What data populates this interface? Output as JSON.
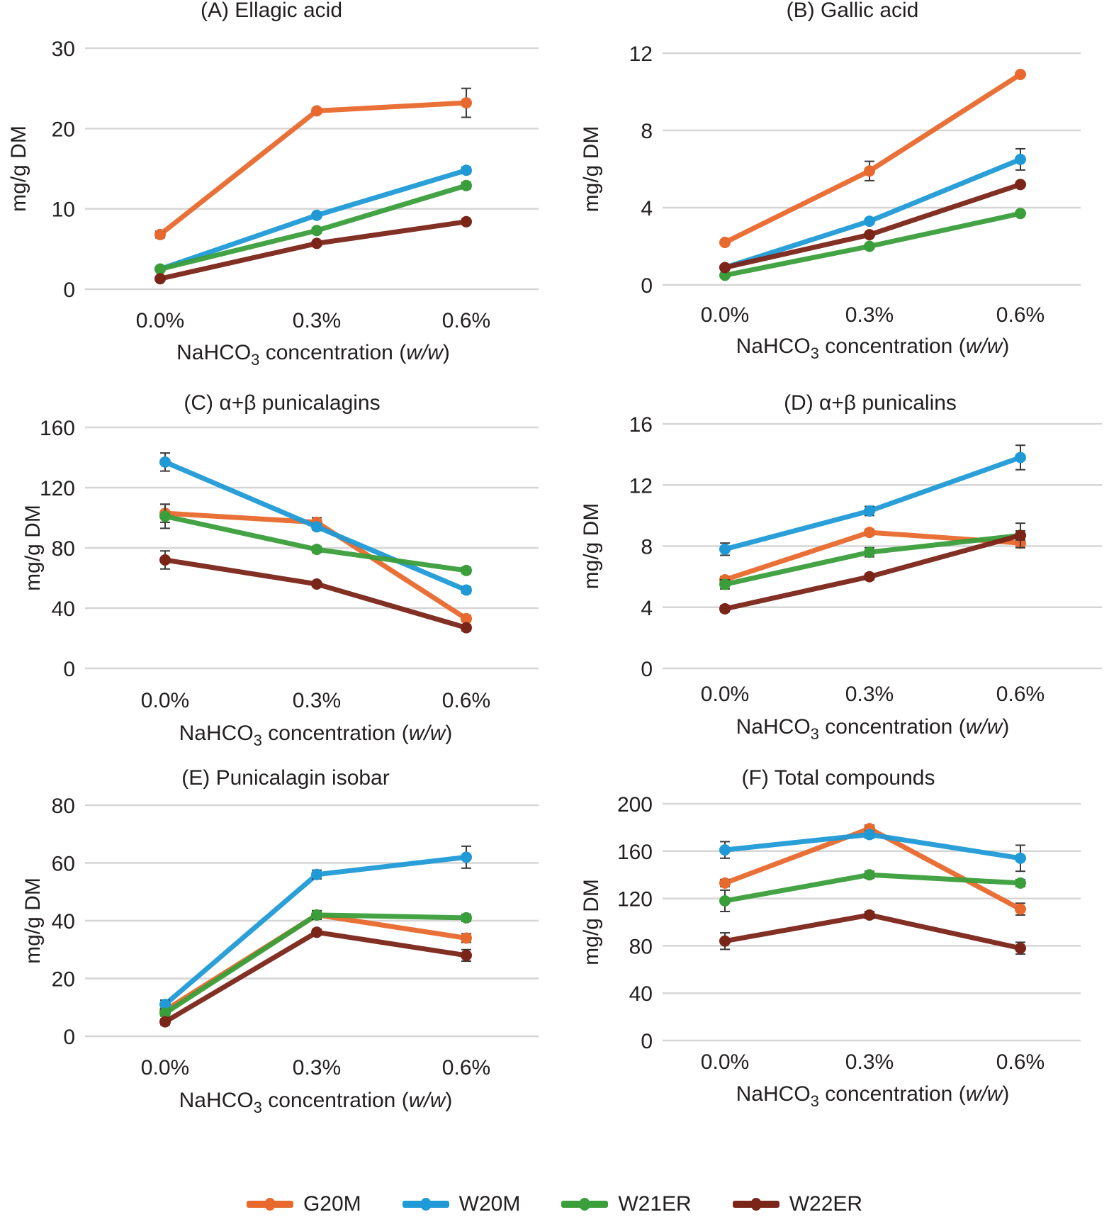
{
  "figure": {
    "legend_entries": [
      "G20M",
      "W20M",
      "W21ER",
      "W22ER"
    ]
  },
  "chart_data": [
    {
      "type": "line",
      "title": "(A) Ellagic acid",
      "xlabel": "NaHCO3 concentration (w/w)",
      "xlabel_parts": {
        "pre": "NaHCO",
        "sub": "3",
        "mid": " concentration (",
        "ital": "w/w",
        "post": ")"
      },
      "ylabel": "mg/g DM",
      "categories": [
        "0.0%",
        "0.3%",
        "0.6%"
      ],
      "ylim": [
        0,
        30
      ],
      "yticks": [
        0,
        10,
        20,
        30
      ],
      "grid": true,
      "series": [
        {
          "name": "G20M",
          "color": "#e8692d",
          "values": [
            6.8,
            22.2,
            23.2
          ],
          "err": [
            0.4,
            0.3,
            1.8
          ]
        },
        {
          "name": "W20M",
          "color": "#1f9ad6",
          "values": [
            2.5,
            9.2,
            14.8
          ],
          "err": [
            0,
            0.3,
            0.4
          ]
        },
        {
          "name": "W21ER",
          "color": "#3a9e3a",
          "values": [
            2.5,
            7.3,
            12.9
          ],
          "err": [
            0,
            0.3,
            0.4
          ]
        },
        {
          "name": "W22ER",
          "color": "#7b2418",
          "values": [
            1.3,
            5.7,
            8.4
          ],
          "err": [
            0,
            0.2,
            0.3
          ]
        }
      ]
    },
    {
      "type": "line",
      "title": "(B) Gallic acid",
      "xlabel": "NaHCO3 concentration (w/w)",
      "xlabel_parts": {
        "pre": "NaHCO",
        "sub": "3",
        "mid": " concentration (",
        "ital": "w/w",
        "post": ")"
      },
      "ylabel": "mg/g DM",
      "categories": [
        "0.0%",
        "0.3%",
        "0.6%"
      ],
      "ylim": [
        0,
        12
      ],
      "yticks": [
        0,
        4,
        8,
        12
      ],
      "grid": true,
      "series": [
        {
          "name": "G20M",
          "color": "#e8692d",
          "values": [
            2.2,
            5.9,
            10.9
          ],
          "err": [
            0,
            0.5,
            0.1
          ]
        },
        {
          "name": "W20M",
          "color": "#1f9ad6",
          "values": [
            0.9,
            3.3,
            6.5
          ],
          "err": [
            0,
            0.1,
            0.55
          ]
        },
        {
          "name": "W21ER",
          "color": "#3a9e3a",
          "values": [
            0.5,
            2.0,
            3.7
          ],
          "err": [
            0,
            0.1,
            0.1
          ]
        },
        {
          "name": "W22ER",
          "color": "#7b2418",
          "values": [
            0.9,
            2.6,
            5.2
          ],
          "err": [
            0,
            0.1,
            0.1
          ]
        }
      ]
    },
    {
      "type": "line",
      "title": "(C) α+β punicalagins",
      "xlabel": "NaHCO3 concentration (w/w)",
      "xlabel_parts": {
        "pre": "NaHCO",
        "sub": "3",
        "mid": " concentration (",
        "ital": "w/w",
        "post": ")"
      },
      "ylabel": "mg/g DM",
      "categories": [
        "0.0%",
        "0.3%",
        "0.6%"
      ],
      "ylim": [
        0,
        160
      ],
      "yticks": [
        0,
        40,
        80,
        120,
        160
      ],
      "grid": true,
      "series": [
        {
          "name": "G20M",
          "color": "#e8692d",
          "values": [
            103,
            97,
            33
          ],
          "err": [
            6,
            3,
            2
          ]
        },
        {
          "name": "W20M",
          "color": "#1f9ad6",
          "values": [
            137,
            94,
            52
          ],
          "err": [
            6,
            2,
            2
          ]
        },
        {
          "name": "W21ER",
          "color": "#3a9e3a",
          "values": [
            101,
            79,
            65
          ],
          "err": [
            8,
            2,
            2
          ]
        },
        {
          "name": "W22ER",
          "color": "#7b2418",
          "values": [
            72,
            56,
            27
          ],
          "err": [
            6,
            1,
            2
          ]
        }
      ]
    },
    {
      "type": "line",
      "title": "(D) α+β punicalins",
      "xlabel": "NaHCO3 concentration (w/w)",
      "xlabel_parts": {
        "pre": "NaHCO",
        "sub": "3",
        "mid": " concentration (",
        "ital": "w/w",
        "post": ")"
      },
      "ylabel": "mg/g DM",
      "categories": [
        "0.0%",
        "0.3%",
        "0.6%"
      ],
      "ylim": [
        0,
        16
      ],
      "yticks": [
        0,
        4,
        8,
        12,
        16
      ],
      "grid": true,
      "series": [
        {
          "name": "G20M",
          "color": "#e8692d",
          "values": [
            5.8,
            8.9,
            8.2
          ],
          "err": [
            0.2,
            0.2,
            0.3
          ]
        },
        {
          "name": "W20M",
          "color": "#1f9ad6",
          "values": [
            7.8,
            10.3,
            13.8
          ],
          "err": [
            0.4,
            0.3,
            0.8
          ]
        },
        {
          "name": "W21ER",
          "color": "#3a9e3a",
          "values": [
            5.5,
            7.6,
            8.7
          ],
          "err": [
            0.3,
            0.3,
            0.3
          ]
        },
        {
          "name": "W22ER",
          "color": "#7b2418",
          "values": [
            3.9,
            6.0,
            8.7
          ],
          "err": [
            0.2,
            0.2,
            0.8
          ]
        }
      ]
    },
    {
      "type": "line",
      "title": "(E) Punicalagin isobar",
      "xlabel": "NaHCO3 concentration (w/w)",
      "xlabel_parts": {
        "pre": "NaHCO",
        "sub": "3",
        "mid": " concentration (",
        "ital": "w/w",
        "post": ")"
      },
      "ylabel": "mg/g DM",
      "categories": [
        "0.0%",
        "0.3%",
        "0.6%"
      ],
      "ylim": [
        0,
        80
      ],
      "yticks": [
        0,
        20,
        40,
        60,
        80
      ],
      "grid": true,
      "series": [
        {
          "name": "G20M",
          "color": "#e8692d",
          "values": [
            9,
            42,
            34
          ],
          "err": [
            1,
            1,
            1.5
          ]
        },
        {
          "name": "W20M",
          "color": "#1f9ad6",
          "values": [
            11,
            56,
            62
          ],
          "err": [
            1.5,
            1.5,
            3.8
          ]
        },
        {
          "name": "W21ER",
          "color": "#3a9e3a",
          "values": [
            8,
            42,
            41
          ],
          "err": [
            1,
            1.5,
            1.2
          ]
        },
        {
          "name": "W22ER",
          "color": "#7b2418",
          "values": [
            5,
            36,
            28
          ],
          "err": [
            1,
            1,
            2
          ]
        }
      ]
    },
    {
      "type": "line",
      "title": "(F) Total compounds",
      "xlabel": "NaHCO3 concentration (w/w)",
      "xlabel_parts": {
        "pre": "NaHCO",
        "sub": "3",
        "mid": " concentration (",
        "ital": "w/w",
        "post": ")"
      },
      "ylabel": "mg/g DM",
      "categories": [
        "0.0%",
        "0.3%",
        "0.6%"
      ],
      "ylim": [
        0,
        200
      ],
      "yticks": [
        0,
        40,
        80,
        120,
        160,
        200
      ],
      "grid": true,
      "series": [
        {
          "name": "G20M",
          "color": "#e8692d",
          "values": [
            133,
            179,
            111
          ],
          "err": [
            3,
            3,
            5
          ]
        },
        {
          "name": "W20M",
          "color": "#1f9ad6",
          "values": [
            161,
            174,
            154
          ],
          "err": [
            7,
            3,
            11
          ]
        },
        {
          "name": "W21ER",
          "color": "#3a9e3a",
          "values": [
            118,
            140,
            133
          ],
          "err": [
            9,
            3,
            3
          ]
        },
        {
          "name": "W22ER",
          "color": "#7b2418",
          "values": [
            84,
            106,
            78
          ],
          "err": [
            7,
            3,
            5
          ]
        }
      ]
    }
  ]
}
